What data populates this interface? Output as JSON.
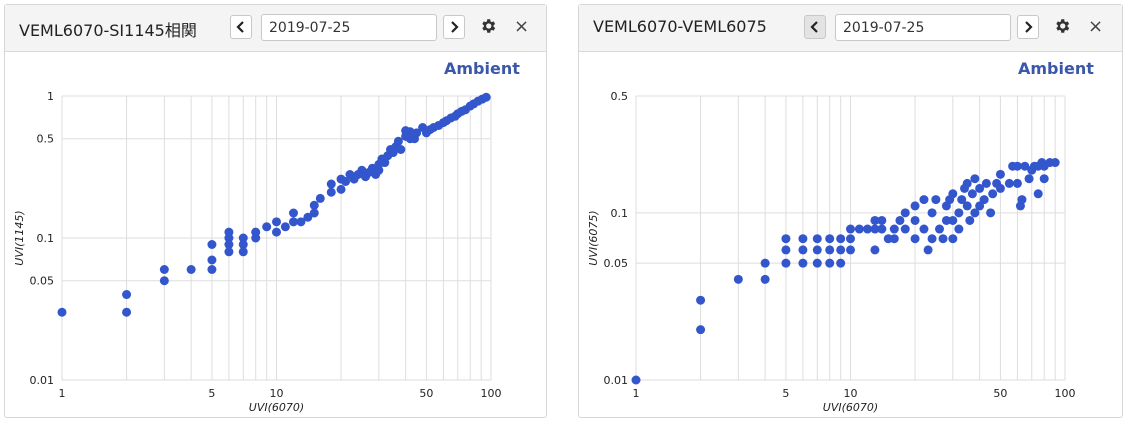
{
  "panels": [
    {
      "title": "VEML6070-SI1145相関",
      "date": "2019-07-25",
      "brand": "Ambient",
      "prev_icon": "chevron-left-icon",
      "next_icon": "chevron-right-icon",
      "settings_icon": "gear-icon",
      "close_label": "×"
    },
    {
      "title": "VEML6070-VEML6075",
      "date": "2019-07-25",
      "brand": "Ambient",
      "prev_icon": "chevron-left-icon",
      "next_icon": "chevron-right-icon",
      "settings_icon": "gear-icon",
      "close_label": "×"
    }
  ],
  "colors": {
    "point": "#3356cc",
    "grid": "#dddddd",
    "brand": "#3a57a9"
  },
  "chart_data": [
    {
      "type": "scatter",
      "title": "",
      "xlabel": "UVI(6070)",
      "ylabel": "UVI(1145)",
      "xscale": "log",
      "yscale": "log",
      "xlim": [
        1,
        100
      ],
      "ylim": [
        0.01,
        1
      ],
      "xticks": [
        1,
        5,
        10,
        50,
        100
      ],
      "yticks": [
        0.01,
        0.05,
        0.1,
        0.5,
        1
      ],
      "grid": true,
      "series": [
        {
          "points": [
            [
              1,
              0.03
            ],
            [
              2,
              0.03
            ],
            [
              2,
              0.04
            ],
            [
              3,
              0.05
            ],
            [
              3,
              0.06
            ],
            [
              4,
              0.06
            ],
            [
              5,
              0.06
            ],
            [
              5,
              0.07
            ],
            [
              5,
              0.09
            ],
            [
              6,
              0.08
            ],
            [
              6,
              0.09
            ],
            [
              6,
              0.1
            ],
            [
              6,
              0.11
            ],
            [
              7,
              0.08
            ],
            [
              7,
              0.09
            ],
            [
              7,
              0.1
            ],
            [
              8,
              0.1
            ],
            [
              8,
              0.11
            ],
            [
              9,
              0.12
            ],
            [
              10,
              0.11
            ],
            [
              10,
              0.13
            ],
            [
              11,
              0.12
            ],
            [
              12,
              0.13
            ],
            [
              12,
              0.15
            ],
            [
              13,
              0.13
            ],
            [
              14,
              0.14
            ],
            [
              15,
              0.15
            ],
            [
              15,
              0.17
            ],
            [
              16,
              0.19
            ],
            [
              18,
              0.21
            ],
            [
              18,
              0.24
            ],
            [
              20,
              0.22
            ],
            [
              20,
              0.26
            ],
            [
              21,
              0.25
            ],
            [
              22,
              0.28
            ],
            [
              23,
              0.26
            ],
            [
              24,
              0.28
            ],
            [
              25,
              0.3
            ],
            [
              26,
              0.27
            ],
            [
              27,
              0.29
            ],
            [
              28,
              0.31
            ],
            [
              29,
              0.28
            ],
            [
              30,
              0.3
            ],
            [
              30,
              0.33
            ],
            [
              31,
              0.36
            ],
            [
              32,
              0.34
            ],
            [
              33,
              0.38
            ],
            [
              34,
              0.42
            ],
            [
              35,
              0.4
            ],
            [
              36,
              0.44
            ],
            [
              37,
              0.48
            ],
            [
              38,
              0.42
            ],
            [
              40,
              0.52
            ],
            [
              40,
              0.57
            ],
            [
              42,
              0.5
            ],
            [
              42,
              0.56
            ],
            [
              44,
              0.5
            ],
            [
              45,
              0.55
            ],
            [
              48,
              0.6
            ],
            [
              50,
              0.55
            ],
            [
              52,
              0.58
            ],
            [
              54,
              0.6
            ],
            [
              57,
              0.62
            ],
            [
              60,
              0.65
            ],
            [
              62,
              0.67
            ],
            [
              65,
              0.7
            ],
            [
              68,
              0.72
            ],
            [
              70,
              0.75
            ],
            [
              73,
              0.78
            ],
            [
              76,
              0.8
            ],
            [
              80,
              0.85
            ],
            [
              83,
              0.88
            ],
            [
              87,
              0.92
            ],
            [
              91,
              0.95
            ],
            [
              95,
              0.98
            ]
          ]
        }
      ]
    },
    {
      "type": "scatter",
      "title": "",
      "xlabel": "UVI(6070)",
      "ylabel": "UVI(6075)",
      "xscale": "log",
      "yscale": "log",
      "xlim": [
        1,
        100
      ],
      "ylim": [
        0.01,
        0.5
      ],
      "xticks": [
        1,
        5,
        10,
        50,
        100
      ],
      "yticks": [
        0.01,
        0.05,
        0.1,
        0.5
      ],
      "grid": true,
      "series": [
        {
          "points": [
            [
              1,
              0.01
            ],
            [
              2,
              0.02
            ],
            [
              2,
              0.03
            ],
            [
              3,
              0.04
            ],
            [
              4,
              0.04
            ],
            [
              4,
              0.05
            ],
            [
              5,
              0.05
            ],
            [
              5,
              0.06
            ],
            [
              5,
              0.07
            ],
            [
              6,
              0.05
            ],
            [
              6,
              0.06
            ],
            [
              6,
              0.07
            ],
            [
              7,
              0.05
            ],
            [
              7,
              0.06
            ],
            [
              7,
              0.07
            ],
            [
              8,
              0.05
            ],
            [
              8,
              0.06
            ],
            [
              8,
              0.07
            ],
            [
              9,
              0.05
            ],
            [
              9,
              0.06
            ],
            [
              9,
              0.07
            ],
            [
              10,
              0.06
            ],
            [
              10,
              0.07
            ],
            [
              10,
              0.08
            ],
            [
              11,
              0.08
            ],
            [
              12,
              0.08
            ],
            [
              13,
              0.06
            ],
            [
              13,
              0.08
            ],
            [
              13,
              0.09
            ],
            [
              14,
              0.08
            ],
            [
              14,
              0.09
            ],
            [
              15,
              0.07
            ],
            [
              16,
              0.07
            ],
            [
              16,
              0.08
            ],
            [
              17,
              0.09
            ],
            [
              18,
              0.08
            ],
            [
              18,
              0.1
            ],
            [
              20,
              0.07
            ],
            [
              20,
              0.09
            ],
            [
              20,
              0.11
            ],
            [
              22,
              0.08
            ],
            [
              22,
              0.12
            ],
            [
              23,
              0.06
            ],
            [
              24,
              0.07
            ],
            [
              24,
              0.1
            ],
            [
              25,
              0.12
            ],
            [
              26,
              0.08
            ],
            [
              27,
              0.07
            ],
            [
              28,
              0.09
            ],
            [
              28,
              0.11
            ],
            [
              29,
              0.12
            ],
            [
              30,
              0.07
            ],
            [
              30,
              0.09
            ],
            [
              30,
              0.13
            ],
            [
              32,
              0.08
            ],
            [
              32,
              0.1
            ],
            [
              33,
              0.12
            ],
            [
              34,
              0.14
            ],
            [
              35,
              0.11
            ],
            [
              35,
              0.15
            ],
            [
              36,
              0.09
            ],
            [
              37,
              0.13
            ],
            [
              38,
              0.1
            ],
            [
              38,
              0.16
            ],
            [
              40,
              0.11
            ],
            [
              40,
              0.14
            ],
            [
              42,
              0.12
            ],
            [
              43,
              0.15
            ],
            [
              45,
              0.1
            ],
            [
              46,
              0.13
            ],
            [
              48,
              0.15
            ],
            [
              50,
              0.14
            ],
            [
              50,
              0.17
            ],
            [
              55,
              0.15
            ],
            [
              57,
              0.19
            ],
            [
              60,
              0.15
            ],
            [
              60,
              0.19
            ],
            [
              62,
              0.11
            ],
            [
              63,
              0.12
            ],
            [
              65,
              0.19
            ],
            [
              68,
              0.16
            ],
            [
              70,
              0.18
            ],
            [
              72,
              0.19
            ],
            [
              75,
              0.13
            ],
            [
              75,
              0.19
            ],
            [
              78,
              0.2
            ],
            [
              80,
              0.16
            ],
            [
              80,
              0.19
            ],
            [
              85,
              0.2
            ],
            [
              90,
              0.2
            ]
          ]
        }
      ]
    }
  ]
}
